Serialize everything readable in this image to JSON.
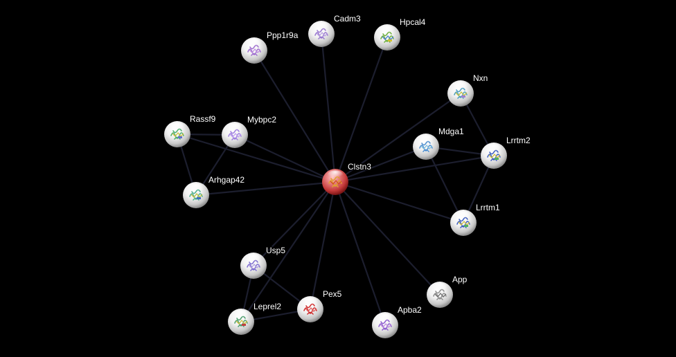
{
  "network": {
    "center": "Clstn3",
    "nodes": [
      {
        "id": "Clstn3",
        "label": "Clstn3",
        "query": true,
        "structure_colors": [
          "#e0a030",
          "#d05020"
        ]
      },
      {
        "id": "Ppp1r9a",
        "label": "Ppp1r9a",
        "structure_colors": [
          "#a070d0",
          "#c090e0"
        ]
      },
      {
        "id": "Cadm3",
        "label": "Cadm3",
        "structure_colors": [
          "#9a7ad0",
          "#b8a0e0"
        ]
      },
      {
        "id": "Hpcal4",
        "label": "Hpcal4",
        "structure_colors": [
          "#70b040",
          "#4a80d0",
          "#d0c030"
        ]
      },
      {
        "id": "Nxn",
        "label": "Nxn",
        "structure_colors": [
          "#50a0c0",
          "#c0c040",
          "#a080d0"
        ]
      },
      {
        "id": "Mdga1",
        "label": "Mdga1",
        "structure_colors": [
          "#5090d0",
          "#80c0e0"
        ]
      },
      {
        "id": "Lrrtm2",
        "label": "Lrrtm2",
        "structure_colors": [
          "#4060c0",
          "#d0c040",
          "#50b060"
        ]
      },
      {
        "id": "Rassf9",
        "label": "Rassf9",
        "structure_colors": [
          "#50b070",
          "#d0c040",
          "#6070d0"
        ]
      },
      {
        "id": "Mybpc2",
        "label": "Mybpc2",
        "structure_colors": [
          "#a080e0",
          "#c0a0f0"
        ]
      },
      {
        "id": "Arhgap42",
        "label": "Arhgap42",
        "structure_colors": [
          "#50b090",
          "#c0c040",
          "#4070c0"
        ]
      },
      {
        "id": "Lrrtm1",
        "label": "Lrrtm1",
        "structure_colors": [
          "#4060c0",
          "#d0c040",
          "#50b060"
        ]
      },
      {
        "id": "Usp5",
        "label": "Usp5",
        "structure_colors": [
          "#8070d0",
          "#b0a0e0"
        ]
      },
      {
        "id": "Pex5",
        "label": "Pex5",
        "structure_colors": [
          "#d03030",
          "#e06060"
        ]
      },
      {
        "id": "App",
        "label": "App",
        "structure_colors": [
          "#909090",
          "#707070"
        ]
      },
      {
        "id": "Leprel2",
        "label": "Leprel2",
        "structure_colors": [
          "#50a070",
          "#d0c040",
          "#c04040"
        ]
      },
      {
        "id": "Apba2",
        "label": "Apba2",
        "structure_colors": [
          "#9060d0",
          "#c090e0"
        ]
      }
    ],
    "edges": [
      [
        "Clstn3",
        "Ppp1r9a"
      ],
      [
        "Clstn3",
        "Cadm3"
      ],
      [
        "Clstn3",
        "Hpcal4"
      ],
      [
        "Clstn3",
        "Nxn"
      ],
      [
        "Clstn3",
        "Mdga1"
      ],
      [
        "Clstn3",
        "Lrrtm2"
      ],
      [
        "Clstn3",
        "Rassf9"
      ],
      [
        "Clstn3",
        "Mybpc2"
      ],
      [
        "Clstn3",
        "Arhgap42"
      ],
      [
        "Clstn3",
        "Lrrtm1"
      ],
      [
        "Clstn3",
        "Usp5"
      ],
      [
        "Clstn3",
        "Pex5"
      ],
      [
        "Clstn3",
        "App"
      ],
      [
        "Clstn3",
        "Leprel2"
      ],
      [
        "Clstn3",
        "Apba2"
      ],
      [
        "Rassf9",
        "Mybpc2"
      ],
      [
        "Rassf9",
        "Arhgap42"
      ],
      [
        "Mybpc2",
        "Arhgap42"
      ],
      [
        "Nxn",
        "Lrrtm2"
      ],
      [
        "Mdga1",
        "Lrrtm2"
      ],
      [
        "Mdga1",
        "Lrrtm1"
      ],
      [
        "Lrrtm2",
        "Lrrtm1"
      ],
      [
        "Usp5",
        "Leprel2"
      ],
      [
        "Usp5",
        "Pex5"
      ],
      [
        "Leprel2",
        "Pex5"
      ]
    ]
  }
}
